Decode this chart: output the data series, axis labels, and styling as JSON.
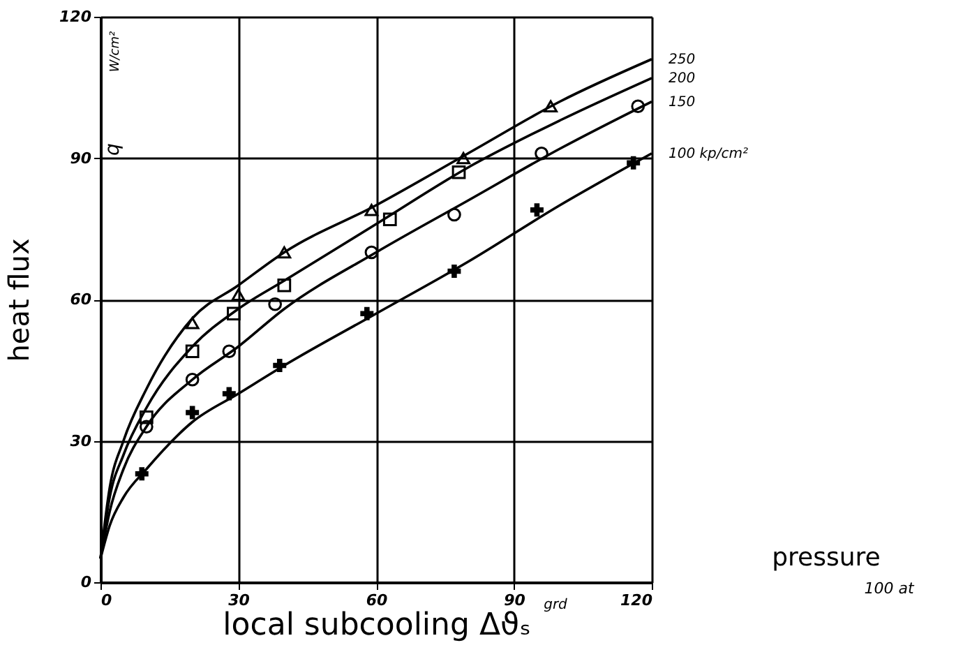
{
  "chart_data": {
    "type": "line",
    "xlabel": "local subcooling Δϑₛ",
    "ylabel": "heat flux",
    "xlim": [
      0,
      120
    ],
    "ylim": [
      0,
      120
    ],
    "xticks": [
      0,
      30,
      60,
      90,
      120
    ],
    "yticks": [
      0,
      30,
      60,
      90,
      120
    ],
    "grid": true,
    "line_style": "solid",
    "series": [
      {
        "name": "250",
        "color": "#000000",
        "x": [
          0,
          2,
          5,
          10,
          20,
          30,
          40,
          60,
          80,
          100,
          120
        ],
        "values": [
          5,
          20,
          30,
          41,
          56,
          63,
          70,
          80,
          91,
          102,
          111
        ]
      },
      {
        "name": "200",
        "color": "#000000",
        "x": [
          0,
          2,
          5,
          10,
          20,
          30,
          40,
          60,
          80,
          100,
          120
        ],
        "values": [
          5,
          18,
          27,
          37,
          50,
          58,
          64,
          76,
          88,
          98,
          107
        ]
      },
      {
        "name": "150",
        "color": "#000000",
        "x": [
          0,
          2,
          5,
          10,
          20,
          30,
          40,
          60,
          80,
          100,
          120
        ],
        "values": [
          5,
          15,
          24,
          33,
          43,
          50,
          58,
          70,
          81,
          92,
          102
        ]
      },
      {
        "name": "100 kp/cm²",
        "color": "#000000",
        "x": [
          0,
          2,
          5,
          10,
          20,
          30,
          40,
          60,
          80,
          100,
          120
        ],
        "values": [
          5,
          12,
          18,
          24,
          34,
          40,
          46,
          57,
          68,
          80,
          91
        ]
      },
      {
        "type": "scatter",
        "marker": "triangle",
        "color": "#000000",
        "x": [
          20,
          30,
          40,
          59,
          79,
          98
        ],
        "values": [
          55,
          61,
          70,
          79,
          90,
          101
        ]
      },
      {
        "type": "scatter",
        "marker": "square",
        "color": "#000000",
        "x": [
          10,
          20,
          29,
          40,
          63,
          78
        ],
        "values": [
          35,
          49,
          57,
          63,
          77,
          87
        ]
      },
      {
        "type": "scatter",
        "marker": "circle",
        "color": "#000000",
        "x": [
          10,
          20,
          28,
          38,
          59,
          77,
          96,
          117
        ],
        "values": [
          33,
          43,
          49,
          59,
          70,
          78,
          91,
          101
        ]
      },
      {
        "type": "scatter",
        "marker": "cross",
        "color": "#000000",
        "x": [
          9,
          20,
          28,
          39,
          58,
          77,
          95,
          116
        ],
        "values": [
          23,
          36,
          40,
          46,
          57,
          66,
          79,
          89
        ]
      }
    ],
    "annotations": [
      "q",
      "W/cm²",
      "grd",
      "pressure",
      "100 at"
    ]
  }
}
